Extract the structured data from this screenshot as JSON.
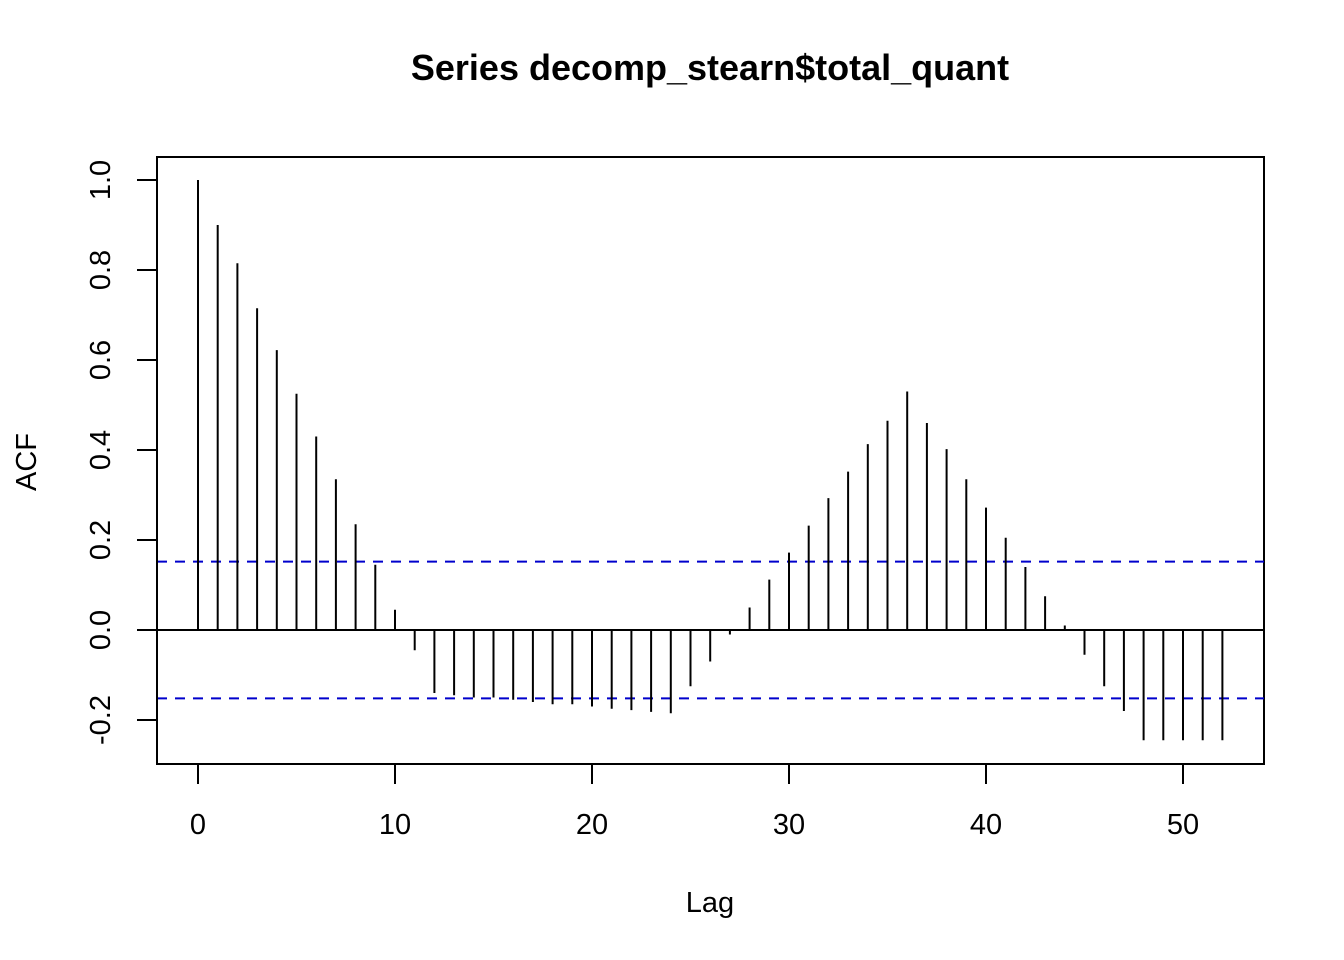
{
  "chart_data": {
    "type": "bar",
    "title": "Series  decomp_stearn$total_quant",
    "xlabel": "Lag",
    "ylabel": "ACF",
    "xlim": [
      -2,
      52.5
    ],
    "ylim": [
      -0.3,
      1.05
    ],
    "xticks": [
      0,
      10,
      20,
      30,
      40,
      50
    ],
    "yticks": [
      -0.2,
      0.0,
      0.2,
      0.4,
      0.6,
      0.8,
      1.0
    ],
    "ytick_labels": [
      "-0.2",
      "0.0",
      "0.2",
      "0.4",
      "0.6",
      "0.8",
      "1.0"
    ],
    "x": [
      0,
      1,
      2,
      3,
      4,
      5,
      6,
      7,
      8,
      9,
      10,
      11,
      12,
      13,
      14,
      15,
      16,
      17,
      18,
      19,
      20,
      21,
      22,
      23,
      24,
      25,
      26,
      27,
      28,
      29,
      30,
      31,
      32,
      33,
      34,
      35,
      36,
      37,
      38,
      39,
      40,
      41,
      42,
      43,
      44,
      45,
      46,
      47,
      48,
      49,
      50,
      51,
      52
    ],
    "values": [
      1.0,
      0.9,
      0.815,
      0.715,
      0.622,
      0.525,
      0.43,
      0.335,
      0.235,
      0.145,
      0.045,
      -0.045,
      -0.14,
      -0.145,
      -0.15,
      -0.15,
      -0.155,
      -0.16,
      -0.165,
      -0.165,
      -0.17,
      -0.175,
      -0.178,
      -0.182,
      -0.185,
      -0.125,
      -0.07,
      -0.01,
      0.05,
      0.112,
      0.172,
      0.232,
      0.293,
      0.352,
      0.413,
      0.465,
      0.53,
      0.46,
      0.402,
      0.335,
      0.272,
      0.205,
      0.14,
      0.075,
      0.01,
      -0.055,
      -0.125,
      -0.18,
      -0.245,
      -0.245,
      -0.245,
      -0.245,
      -0.245
    ],
    "confidence_bound": 0.152,
    "bar_color": "#000000",
    "ci_color": "#0000cc",
    "grid": false
  }
}
